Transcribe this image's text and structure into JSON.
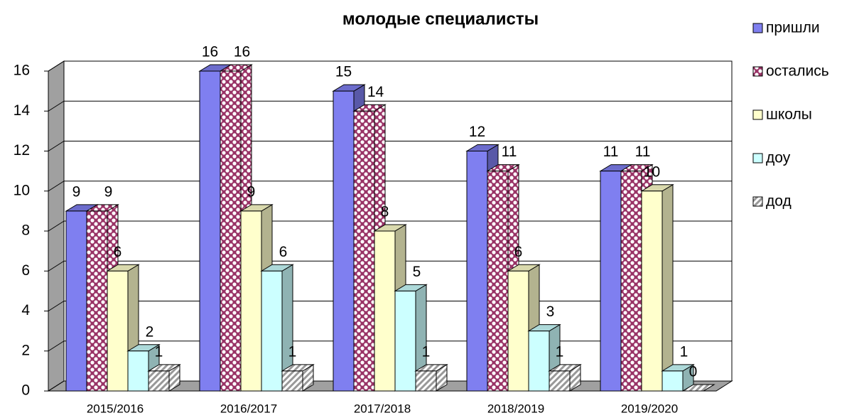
{
  "chart_data": {
    "type": "bar3d",
    "title": "молодые специалисты",
    "categories": [
      "2015/2016",
      "2016/2017",
      "2017/2018",
      "2018/2019",
      "2019/2020"
    ],
    "series": [
      {
        "name": "пришли",
        "color": "#7f7ff0",
        "values": [
          9,
          16,
          15,
          12,
          11
        ]
      },
      {
        "name": "остались",
        "color": "#993366",
        "pattern": "dots",
        "values": [
          9,
          16,
          14,
          11,
          11
        ]
      },
      {
        "name": "школы",
        "color": "#ffffcc",
        "values": [
          6,
          9,
          8,
          6,
          10
        ]
      },
      {
        "name": "доу",
        "color": "#ccffff",
        "values": [
          2,
          6,
          5,
          3,
          1
        ]
      },
      {
        "name": "дод",
        "color": "#808080",
        "pattern": "hatch",
        "values": [
          1,
          1,
          1,
          1,
          0
        ]
      }
    ],
    "ylim": [
      0,
      16
    ],
    "yticks": [
      0,
      2,
      4,
      6,
      8,
      10,
      12,
      14,
      16
    ],
    "grid": true,
    "legend": "right"
  }
}
